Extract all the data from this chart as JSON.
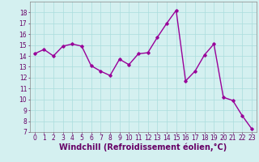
{
  "x": [
    0,
    1,
    2,
    3,
    4,
    5,
    6,
    7,
    8,
    9,
    10,
    11,
    12,
    13,
    14,
    15,
    16,
    17,
    18,
    19,
    20,
    21,
    22,
    23
  ],
  "y": [
    14.2,
    14.6,
    14.0,
    14.9,
    15.1,
    14.9,
    13.1,
    12.6,
    12.2,
    13.7,
    13.2,
    14.2,
    14.3,
    15.7,
    17.0,
    18.2,
    11.7,
    12.6,
    14.1,
    15.1,
    10.2,
    9.9,
    8.5,
    7.3
  ],
  "line_color": "#990099",
  "marker": "D",
  "marker_size": 1.8,
  "line_width": 1.0,
  "background_color": "#d4f0f0",
  "grid_color": "#aadddd",
  "xlabel": "Windchill (Refroidissement éolien,°C)",
  "xlabel_fontsize": 7,
  "xlabel_color": "#660066",
  "xlim": [
    -0.5,
    23.5
  ],
  "ylim": [
    7,
    19
  ],
  "yticks": [
    7,
    8,
    9,
    10,
    11,
    12,
    13,
    14,
    15,
    16,
    17,
    18
  ],
  "xticks": [
    0,
    1,
    2,
    3,
    4,
    5,
    6,
    7,
    8,
    9,
    10,
    11,
    12,
    13,
    14,
    15,
    16,
    17,
    18,
    19,
    20,
    21,
    22,
    23
  ],
  "tick_fontsize": 5.5,
  "tick_color": "#660066"
}
